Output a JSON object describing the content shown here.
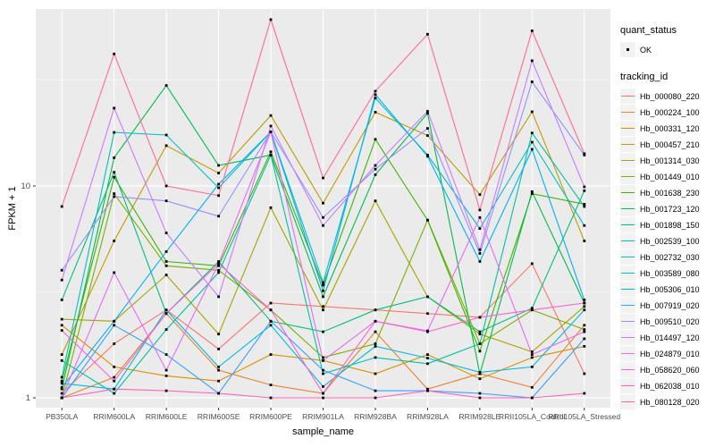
{
  "figure": {
    "background": "#FFFFFF",
    "panel_background": "#EBEBEB",
    "grid_color": "#FFFFFF",
    "axis_text_color": "#4D4D4D",
    "marker_color": "#000000"
  },
  "legend": {
    "quant_status": {
      "title": "quant_status",
      "items": [
        {
          "label": "OK",
          "marker": "black-point"
        }
      ]
    },
    "tracking_id": {
      "title": "tracking_id"
    }
  },
  "chart_data": {
    "type": "line",
    "title": "",
    "xlabel": "sample_name",
    "ylabel": "FPKM + 1",
    "y_scale": "log10",
    "y_ticks": [
      1,
      10
    ],
    "y_minor_gridlines": [
      3.162,
      31.623
    ],
    "ylim": [
      0.95,
      72
    ],
    "grid": true,
    "legend_position": "right",
    "point_marker": "small-black-square",
    "x_categories": [
      "PB350LA",
      "RRIM600LA",
      "RRIM600LE",
      "RRIM600SE",
      "RRIM600PE",
      "RRIM901LA",
      "RRIM928BA",
      "RRIM928LA",
      "RRIM928LE",
      "RRII105LA_Control",
      "RRII105LA_Stressed"
    ],
    "series": [
      {
        "name": "Hb_000080_220",
        "color": "#F8766D",
        "values": [
          1.05,
          1.8,
          2.6,
          1.7,
          2.8,
          2.7,
          2.6,
          2.5,
          2.4,
          4.3,
          1.3
        ]
      },
      {
        "name": "Hb_000224_100",
        "color": "#EA8331",
        "values": [
          1.0,
          1.25,
          2.5,
          1.35,
          1.15,
          1.05,
          2.05,
          1.1,
          1.3,
          1.12,
          2.2
        ]
      },
      {
        "name": "Hb_000331_120",
        "color": "#D89000",
        "values": [
          2.2,
          1.4,
          1.27,
          1.2,
          1.6,
          1.5,
          1.3,
          1.6,
          1.23,
          1.55,
          1.75
        ]
      },
      {
        "name": "Hb_000457_210",
        "color": "#C09B00",
        "values": [
          1.6,
          5.5,
          15.5,
          11.5,
          21.5,
          8.3,
          22.3,
          17.3,
          9.1,
          22.4,
          5.5
        ]
      },
      {
        "name": "Hb_001314_030",
        "color": "#A3A500",
        "values": [
          2.35,
          2.3,
          3.8,
          2.0,
          7.9,
          2.6,
          8.5,
          3.0,
          2.0,
          1.65,
          2.7
        ]
      },
      {
        "name": "Hb_001449_010",
        "color": "#7CAE00",
        "values": [
          1.0,
          9.2,
          4.2,
          4.0,
          2.6,
          1.55,
          1.8,
          6.9,
          1.8,
          2.6,
          2.1
        ]
      },
      {
        "name": "Hb_001638_230",
        "color": "#39B600",
        "values": [
          1.2,
          11.0,
          4.4,
          4.2,
          14.5,
          3.4,
          16.6,
          6.9,
          1.66,
          9.2,
          8.2
        ]
      },
      {
        "name": "Hb_001723_120",
        "color": "#00BB4E",
        "values": [
          1.1,
          13.6,
          29.8,
          12.5,
          14.0,
          3.0,
          11.3,
          22.0,
          1.3,
          9.4,
          2.8
        ]
      },
      {
        "name": "Hb_001898_150",
        "color": "#00BF7D",
        "values": [
          2.9,
          11.6,
          2.5,
          4.4,
          2.3,
          2.05,
          2.6,
          3.0,
          2.05,
          2.65,
          9.5
        ]
      },
      {
        "name": "Hb_002539_100",
        "color": "#00C1A3",
        "values": [
          1.5,
          1.05,
          2.1,
          3.9,
          14.0,
          1.3,
          1.55,
          1.45,
          1.8,
          17.8,
          8.0
        ]
      },
      {
        "name": "Hb_002732_030",
        "color": "#00BFC4",
        "values": [
          1.25,
          17.9,
          17.4,
          9.8,
          18.0,
          3.5,
          26.0,
          14.0,
          6.3,
          16.1,
          6.5
        ]
      },
      {
        "name": "Hb_003589_080",
        "color": "#00BAE0",
        "values": [
          1.17,
          1.1,
          2.6,
          1.4,
          2.2,
          1.13,
          1.75,
          1.54,
          1.32,
          1.4,
          2.6
        ]
      },
      {
        "name": "Hb_005306_010",
        "color": "#00B0F6",
        "values": [
          1.12,
          2.3,
          4.9,
          10.2,
          18.0,
          3.2,
          27.0,
          13.8,
          4.4,
          14.9,
          2.9
        ]
      },
      {
        "name": "Hb_007919_020",
        "color": "#35A2FF",
        "values": [
          1.0,
          2.2,
          1.6,
          1.05,
          2.3,
          1.35,
          1.08,
          1.08,
          1.05,
          1.0,
          1.9
        ]
      },
      {
        "name": "Hb_009510_020",
        "color": "#9590FF",
        "values": [
          4.0,
          8.9,
          8.5,
          7.2,
          18.0,
          7.1,
          12.0,
          18.7,
          4.8,
          31.0,
          14.0
        ]
      },
      {
        "name": "Hb_014497_120",
        "color": "#C77CFF",
        "values": [
          3.6,
          23.3,
          6.0,
          3.0,
          19.2,
          6.5,
          12.5,
          22.5,
          5.0,
          39.0,
          9.9
        ]
      },
      {
        "name": "Hb_024879_010",
        "color": "#E76BF3",
        "values": [
          1.0,
          3.9,
          1.35,
          4.3,
          18.0,
          1.5,
          2.3,
          2.07,
          7.1,
          1.6,
          2.05
        ]
      },
      {
        "name": "Hb_058620_060",
        "color": "#FA62DB",
        "values": [
          2.08,
          1.2,
          2.5,
          4.3,
          2.6,
          1.05,
          2.3,
          2.05,
          2.4,
          2.6,
          2.8
        ]
      },
      {
        "name": "Hb_062038_010",
        "color": "#FF62BC",
        "values": [
          1.0,
          1.1,
          1.08,
          1.05,
          1.0,
          1.0,
          1.0,
          1.08,
          1.0,
          1.0,
          1.05
        ]
      },
      {
        "name": "Hb_080128_020",
        "color": "#FF6A98",
        "values": [
          8.0,
          42.0,
          10.0,
          9.0,
          61.0,
          10.9,
          28.0,
          52.0,
          7.7,
          54.0,
          14.2
        ]
      }
    ]
  }
}
